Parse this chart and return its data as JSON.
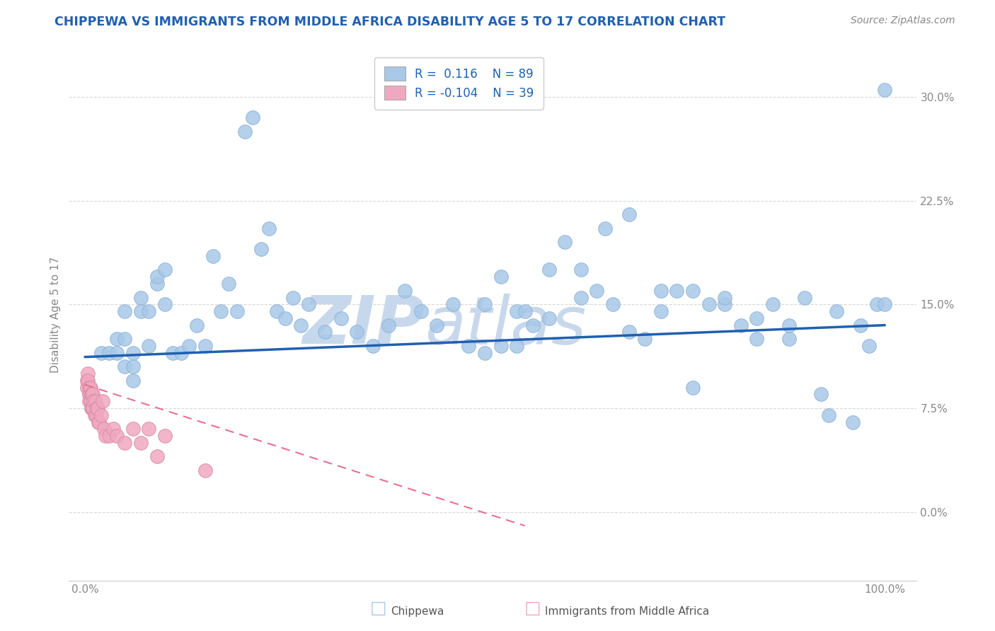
{
  "title": "CHIPPEWA VS IMMIGRANTS FROM MIDDLE AFRICA DISABILITY AGE 5 TO 17 CORRELATION CHART",
  "source": "Source: ZipAtlas.com",
  "ylabel": "Disability Age 5 to 17",
  "ytick_vals": [
    0.0,
    0.075,
    0.15,
    0.225,
    0.3
  ],
  "ytick_labels": [
    "0.0%",
    "7.5%",
    "15.0%",
    "22.5%",
    "30.0%"
  ],
  "xtick_vals": [
    0.0,
    1.0
  ],
  "xtick_labels": [
    "0.0%",
    "100.0%"
  ],
  "chippewa_color": "#a8c8e8",
  "immigrants_color": "#f0a8c0",
  "trendline_blue_color": "#2060b0",
  "trendline_pink_color": "#e87090",
  "watermark_color": "#c8d8ec",
  "background_color": "#ffffff",
  "grid_color": "#d8d8d8",
  "tick_color": "#888888",
  "title_color": "#2060b0",
  "source_color": "#888888",
  "xlim": [
    -0.02,
    1.04
  ],
  "ylim": [
    -0.05,
    0.335
  ],
  "chippewa_x": [
    0.02,
    0.03,
    0.04,
    0.04,
    0.05,
    0.05,
    0.05,
    0.06,
    0.06,
    0.06,
    0.07,
    0.07,
    0.08,
    0.08,
    0.09,
    0.09,
    0.1,
    0.1,
    0.11,
    0.12,
    0.13,
    0.14,
    0.15,
    0.16,
    0.17,
    0.18,
    0.19,
    0.2,
    0.21,
    0.22,
    0.23,
    0.24,
    0.25,
    0.26,
    0.27,
    0.28,
    0.3,
    0.32,
    0.34,
    0.36,
    0.38,
    0.4,
    0.42,
    0.44,
    0.46,
    0.48,
    0.5,
    0.52,
    0.54,
    0.54,
    0.56,
    0.58,
    0.6,
    0.62,
    0.64,
    0.66,
    0.68,
    0.7,
    0.72,
    0.74,
    0.76,
    0.78,
    0.8,
    0.82,
    0.84,
    0.86,
    0.88,
    0.9,
    0.92,
    0.94,
    0.96,
    0.97,
    0.98,
    0.99,
    1.0,
    1.0,
    0.5,
    0.52,
    0.55,
    0.58,
    0.62,
    0.65,
    0.68,
    0.72,
    0.76,
    0.8,
    0.84,
    0.88,
    0.93
  ],
  "chippewa_y": [
    0.115,
    0.115,
    0.115,
    0.125,
    0.145,
    0.125,
    0.105,
    0.105,
    0.095,
    0.115,
    0.155,
    0.145,
    0.145,
    0.12,
    0.165,
    0.17,
    0.175,
    0.15,
    0.115,
    0.115,
    0.12,
    0.135,
    0.12,
    0.185,
    0.145,
    0.165,
    0.145,
    0.275,
    0.285,
    0.19,
    0.205,
    0.145,
    0.14,
    0.155,
    0.135,
    0.15,
    0.13,
    0.14,
    0.13,
    0.12,
    0.135,
    0.16,
    0.145,
    0.135,
    0.15,
    0.12,
    0.15,
    0.17,
    0.145,
    0.12,
    0.135,
    0.175,
    0.195,
    0.155,
    0.16,
    0.15,
    0.215,
    0.125,
    0.16,
    0.16,
    0.16,
    0.15,
    0.15,
    0.135,
    0.125,
    0.15,
    0.125,
    0.155,
    0.085,
    0.145,
    0.065,
    0.135,
    0.12,
    0.15,
    0.15,
    0.305,
    0.115,
    0.12,
    0.145,
    0.14,
    0.175,
    0.205,
    0.13,
    0.145,
    0.09,
    0.155,
    0.14,
    0.135,
    0.07
  ],
  "immigrants_x": [
    0.003,
    0.003,
    0.004,
    0.004,
    0.005,
    0.005,
    0.005,
    0.006,
    0.006,
    0.007,
    0.007,
    0.008,
    0.008,
    0.009,
    0.009,
    0.01,
    0.01,
    0.011,
    0.012,
    0.013,
    0.014,
    0.015,
    0.016,
    0.017,
    0.018,
    0.02,
    0.022,
    0.024,
    0.026,
    0.03,
    0.035,
    0.04,
    0.05,
    0.06,
    0.07,
    0.08,
    0.09,
    0.1,
    0.15
  ],
  "immigrants_y": [
    0.095,
    0.09,
    0.1,
    0.095,
    0.09,
    0.085,
    0.08,
    0.09,
    0.085,
    0.09,
    0.08,
    0.085,
    0.075,
    0.085,
    0.075,
    0.085,
    0.075,
    0.08,
    0.07,
    0.08,
    0.07,
    0.075,
    0.075,
    0.065,
    0.065,
    0.07,
    0.08,
    0.06,
    0.055,
    0.055,
    0.06,
    0.055,
    0.05,
    0.06,
    0.05,
    0.06,
    0.04,
    0.055,
    0.03
  ],
  "trendline_blue_x0": 0.0,
  "trendline_blue_x1": 1.0,
  "trendline_blue_y0": 0.112,
  "trendline_blue_y1": 0.135,
  "trendline_pink_x0": 0.0,
  "trendline_pink_x1": 0.55,
  "trendline_pink_y0": 0.092,
  "trendline_pink_y1": -0.01
}
